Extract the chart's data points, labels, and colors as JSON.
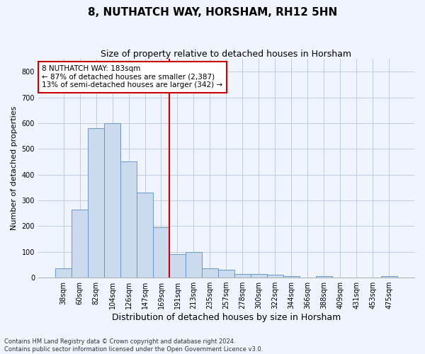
{
  "title": "8, NUTHATCH WAY, HORSHAM, RH12 5HN",
  "subtitle": "Size of property relative to detached houses in Horsham",
  "xlabel": "Distribution of detached houses by size in Horsham",
  "ylabel": "Number of detached properties",
  "categories": [
    "38sqm",
    "60sqm",
    "82sqm",
    "104sqm",
    "126sqm",
    "147sqm",
    "169sqm",
    "191sqm",
    "213sqm",
    "235sqm",
    "257sqm",
    "278sqm",
    "300sqm",
    "322sqm",
    "344sqm",
    "366sqm",
    "388sqm",
    "409sqm",
    "431sqm",
    "453sqm",
    "475sqm"
  ],
  "values": [
    35,
    265,
    580,
    600,
    450,
    330,
    195,
    90,
    100,
    35,
    30,
    15,
    13,
    10,
    5,
    0,
    5,
    0,
    0,
    0,
    5
  ],
  "bar_color": "#ccdaf0",
  "bar_edge_color": "#6699cc",
  "vline_color": "#cc0000",
  "annotation_text": "8 NUTHATCH WAY: 183sqm\n← 87% of detached houses are smaller (2,387)\n13% of semi-detached houses are larger (342) →",
  "annotation_box_color": "#ffffff",
  "annotation_box_edge_color": "#cc0000",
  "ylim": [
    0,
    850
  ],
  "yticks": [
    0,
    100,
    200,
    300,
    400,
    500,
    600,
    700,
    800
  ],
  "background_color": "#f0f4ff",
  "grid_color": "#c0cce0",
  "footer_text": "Contains HM Land Registry data © Crown copyright and database right 2024.\nContains public sector information licensed under the Open Government Licence v3.0.",
  "title_fontsize": 11,
  "subtitle_fontsize": 9,
  "xlabel_fontsize": 9,
  "ylabel_fontsize": 8,
  "tick_fontsize": 7,
  "annotation_fontsize": 7.5,
  "footer_fontsize": 6
}
